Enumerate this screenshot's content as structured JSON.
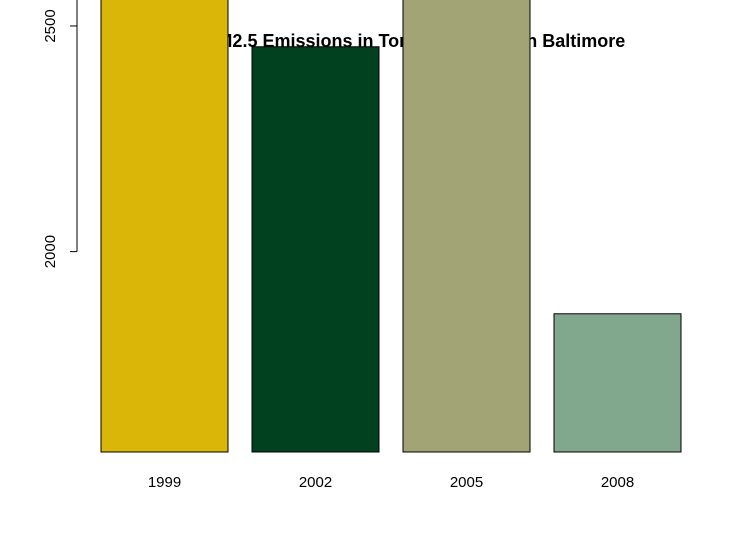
{
  "chart_data": {
    "type": "bar",
    "title": "Total PM2.5 Emissions in Tons for 4 years in Baltimore",
    "xlabel": "",
    "ylabel": "",
    "categories": [
      "1999",
      "2002",
      "2005",
      "2008"
    ],
    "values": [
      3274.18,
      2453.92,
      3091.35,
      1862.28
    ],
    "colors": [
      "#DAB609",
      "#024120",
      "#A2A475",
      "#81A88D"
    ],
    "ylim": [
      1556,
      3274.18
    ],
    "yticks": [
      2000,
      2500,
      3000
    ],
    "grid": false,
    "legend": "none"
  }
}
